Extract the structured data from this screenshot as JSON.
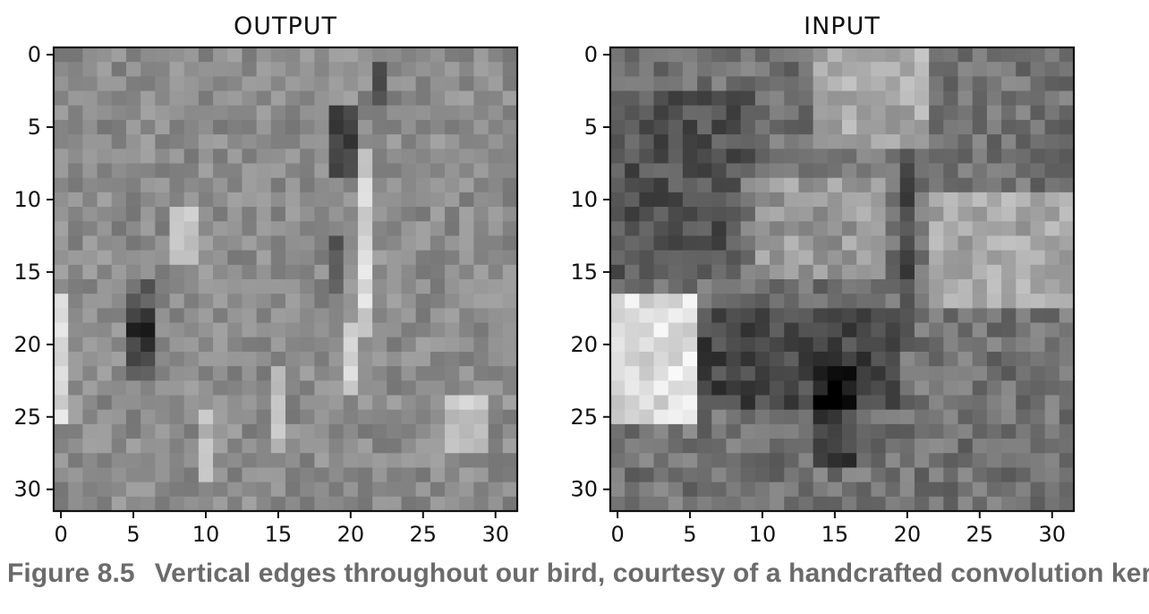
{
  "chart_data": [
    {
      "type": "heatmap",
      "title": "OUTPUT",
      "colormap": "gray",
      "xlim": [
        -0.5,
        31.5
      ],
      "ylim": [
        31.5,
        -0.5
      ],
      "x_ticks": [
        0,
        5,
        10,
        15,
        20,
        25,
        30
      ],
      "y_ticks": [
        0,
        5,
        10,
        15,
        20,
        25,
        30
      ],
      "x_tick_labels": [
        "0",
        "5",
        "10",
        "15",
        "20",
        "25",
        "30"
      ],
      "y_tick_labels": [
        "0",
        "5",
        "10",
        "15",
        "20",
        "25",
        "30"
      ],
      "rows": 32,
      "cols": 32,
      "grid": false
    },
    {
      "type": "heatmap",
      "title": "INPUT",
      "colormap": "gray",
      "xlim": [
        -0.5,
        31.5
      ],
      "ylim": [
        31.5,
        -0.5
      ],
      "x_ticks": [
        0,
        5,
        10,
        15,
        20,
        25,
        30
      ],
      "y_ticks": [
        0,
        5,
        10,
        15,
        20,
        25,
        30
      ],
      "x_tick_labels": [
        "0",
        "5",
        "10",
        "15",
        "20",
        "25",
        "30"
      ],
      "y_tick_labels": [
        "0",
        "5",
        "10",
        "15",
        "20",
        "25",
        "30"
      ],
      "rows": 32,
      "cols": 32,
      "grid": false
    }
  ],
  "caption": {
    "figure_number": "Figure 8.5",
    "text": "Vertical edges throughout our bird, courtesy of a handcrafted convolution kernel"
  }
}
